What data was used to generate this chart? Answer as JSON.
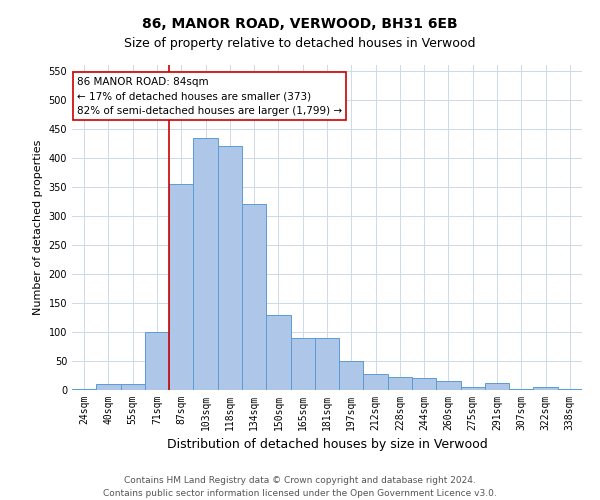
{
  "title1": "86, MANOR ROAD, VERWOOD, BH31 6EB",
  "title2": "Size of property relative to detached houses in Verwood",
  "xlabel": "Distribution of detached houses by size in Verwood",
  "ylabel": "Number of detached properties",
  "categories": [
    "24sqm",
    "40sqm",
    "55sqm",
    "71sqm",
    "87sqm",
    "103sqm",
    "118sqm",
    "134sqm",
    "150sqm",
    "165sqm",
    "181sqm",
    "197sqm",
    "212sqm",
    "228sqm",
    "244sqm",
    "260sqm",
    "275sqm",
    "291sqm",
    "307sqm",
    "322sqm",
    "338sqm"
  ],
  "values": [
    2,
    10,
    10,
    100,
    355,
    435,
    420,
    320,
    130,
    90,
    90,
    50,
    27,
    22,
    20,
    15,
    5,
    12,
    2,
    5,
    2
  ],
  "bar_color": "#aec6e8",
  "bar_edge_color": "#5b9bd5",
  "line_x_index": 4,
  "line_color": "#cc0000",
  "annotation_line1": "86 MANOR ROAD: 84sqm",
  "annotation_line2": "← 17% of detached houses are smaller (373)",
  "annotation_line3": "82% of semi-detached houses are larger (1,799) →",
  "annotation_box_color": "#ffffff",
  "annotation_box_edge": "#cc0000",
  "ylim": [
    0,
    560
  ],
  "yticks": [
    0,
    50,
    100,
    150,
    200,
    250,
    300,
    350,
    400,
    450,
    500,
    550
  ],
  "footer1": "Contains HM Land Registry data © Crown copyright and database right 2024.",
  "footer2": "Contains public sector information licensed under the Open Government Licence v3.0.",
  "bg_color": "#ffffff",
  "grid_color": "#cdd8ea",
  "title1_fontsize": 10,
  "title2_fontsize": 9,
  "xlabel_fontsize": 9,
  "ylabel_fontsize": 8,
  "tick_fontsize": 7,
  "annot_fontsize": 7.5,
  "footer_fontsize": 6.5
}
